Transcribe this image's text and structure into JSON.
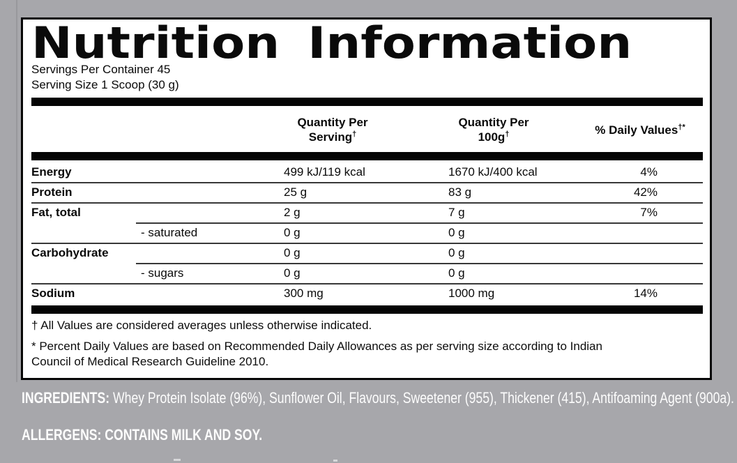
{
  "panel": {
    "title": "Nutrition Information",
    "servings_per_container": "Servings Per Container 45",
    "serving_size": "Serving Size 1 Scoop (30 g)",
    "columns": {
      "per_serving_line1": "Quantity Per",
      "per_serving_line2": "Serving",
      "per_serving_sup": "†",
      "per_100g_line1": "Quantity Per",
      "per_100g_line2": "100g",
      "per_100g_sup": "†",
      "daily_values_label": "% Daily Values",
      "daily_values_sup": "†*"
    },
    "rows": [
      {
        "label": "Energy",
        "per_serving": "499 kJ/119 kcal",
        "per_100g": "1670 kJ/400 kcal",
        "daily_value": "4%"
      },
      {
        "label": "Protein",
        "per_serving": "25 g",
        "per_100g": "83 g",
        "daily_value": "42%"
      },
      {
        "label": "Fat, total",
        "per_serving": "2 g",
        "per_100g": "7 g",
        "daily_value": "7%"
      },
      {
        "label": "- saturated",
        "per_serving": "0 g",
        "per_100g": "0 g",
        "daily_value": ""
      },
      {
        "label": "Carbohydrate",
        "per_serving": "0 g",
        "per_100g": "0 g",
        "daily_value": ""
      },
      {
        "label": "- sugars",
        "per_serving": "0 g",
        "per_100g": "0 g",
        "daily_value": ""
      },
      {
        "label": "Sodium",
        "per_serving": "300 mg",
        "per_100g": "1000 mg",
        "daily_value": "14%"
      }
    ],
    "footnotes": {
      "fn1": "† All Values are considered averages unless otherwise indicated.",
      "fn2_lines": [
        "* Percent Daily Values are based on Recommended Daily Allowances as per serving size according to Indian",
        "Council of Medical Research Guideline 2010."
      ]
    }
  },
  "bottom": {
    "ingredients_label": "INGREDIENTS:",
    "ingredients_text": " Whey Protein Isolate (96%), Sunflower Oil, Flavours, Sweetener (955), Thickener (415), Antifoaming Agent (900a).",
    "allergens_text": "ALLERGENS: CONTAINS MILK AND SOY."
  },
  "colors": {
    "background_gray": "#a7a7ab",
    "panel_white": "#ffffff",
    "ink_black": "#070707",
    "bottom_text_white": "#fdfdfd"
  }
}
